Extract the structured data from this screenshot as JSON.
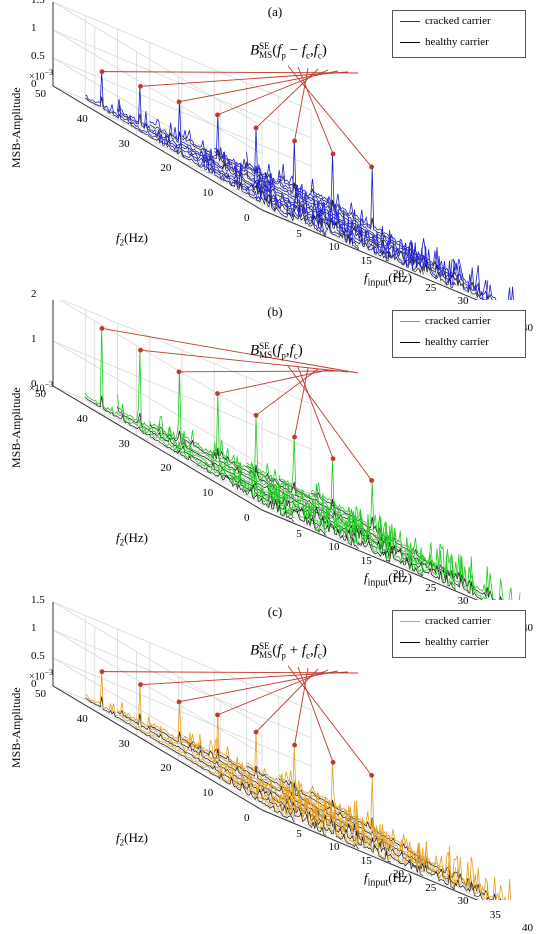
{
  "legend": {
    "cracked": "cracked carrier",
    "healthy": "healthy carrier"
  },
  "axis_text": {
    "ylabel": "MSB-Amplitude",
    "exponent_base": "×10",
    "exponent_power": "−3",
    "f2_italic": "f",
    "f2_sub": "2",
    "f2_unit": "(Hz)",
    "fin_italic": "f",
    "fin_sub": "input",
    "fin_unit": "(Hz)"
  },
  "chart_data": [
    {
      "type": "line",
      "title": "(a)",
      "color": "#1f1fd6",
      "annotation": {
        "b": "B",
        "sup": "SE",
        "sub": "MS",
        "args": "(f_p − f_c, f_c)"
      },
      "ann_parts": {
        "open": "(",
        "fp": "f",
        "fp_sub": "p",
        "op": " − ",
        "fc": "f",
        "fc_sub": "c",
        "sep": ",",
        "fc2": "f",
        "fc2_sub": "c",
        "close": ")"
      },
      "z_ticks": [
        "0",
        "0.5",
        "1",
        "1.5"
      ],
      "zlim": [
        0,
        1.5
      ],
      "f2_ticks": [
        "50",
        "40",
        "30",
        "20",
        "10",
        "0"
      ],
      "fin_ticks": [
        "5",
        "10",
        "15",
        "20",
        "25",
        "30",
        "35",
        "40"
      ],
      "input_frequencies": [
        5,
        10,
        15,
        20,
        25,
        30,
        35,
        40
      ],
      "peaks": [
        0.45,
        0.48,
        0.5,
        0.55,
        0.6,
        0.65,
        0.7,
        0.75
      ]
    },
    {
      "type": "line",
      "title": "(b)",
      "color": "#22cc22",
      "annotation": {
        "b": "B",
        "sup": "SE",
        "sub": "MS",
        "args": "(f_p, f_c)"
      },
      "ann_parts": {
        "open": "(",
        "fp": "f",
        "fp_sub": "p",
        "op": "",
        "fc": "",
        "fc_sub": "",
        "sep": ",",
        "fc2": "f",
        "fc2_sub": "c",
        "close": ")"
      },
      "z_ticks": [
        "0",
        "1",
        "2"
      ],
      "zlim": [
        0,
        2
      ],
      "f2_ticks": [
        "50",
        "40",
        "30",
        "20",
        "10",
        "0"
      ],
      "fin_ticks": [
        "5",
        "10",
        "15",
        "20",
        "25",
        "30",
        "35",
        "40"
      ],
      "input_frequencies": [
        5,
        10,
        15,
        20,
        25,
        30,
        35,
        40
      ],
      "peaks": [
        0.9,
        0.85,
        0.8,
        0.75,
        0.7,
        0.65,
        0.6,
        0.55
      ]
    },
    {
      "type": "line",
      "title": "(c)",
      "color": "#e6a020",
      "annotation": {
        "b": "B",
        "sup": "SE",
        "sub": "MS",
        "args": "(f_p + f_c, f_c)"
      },
      "ann_parts": {
        "open": "(",
        "fp": "f",
        "fp_sub": "p",
        "op": " + ",
        "fc": "f",
        "fc_sub": "c",
        "sep": ",",
        "fc2": "f",
        "fc2_sub": "c",
        "close": ")"
      },
      "z_ticks": [
        "0",
        "0.5",
        "1",
        "1.5"
      ],
      "zlim": [
        0,
        1.5
      ],
      "f2_ticks": [
        "50",
        "40",
        "30",
        "20",
        "10",
        "0"
      ],
      "fin_ticks": [
        "5",
        "10",
        "15",
        "20",
        "25",
        "30",
        "35",
        "40"
      ],
      "input_frequencies": [
        5,
        10,
        15,
        20,
        25,
        30,
        35,
        40
      ],
      "peaks": [
        0.45,
        0.5,
        0.5,
        0.55,
        0.55,
        0.6,
        0.6,
        0.65
      ]
    }
  ]
}
